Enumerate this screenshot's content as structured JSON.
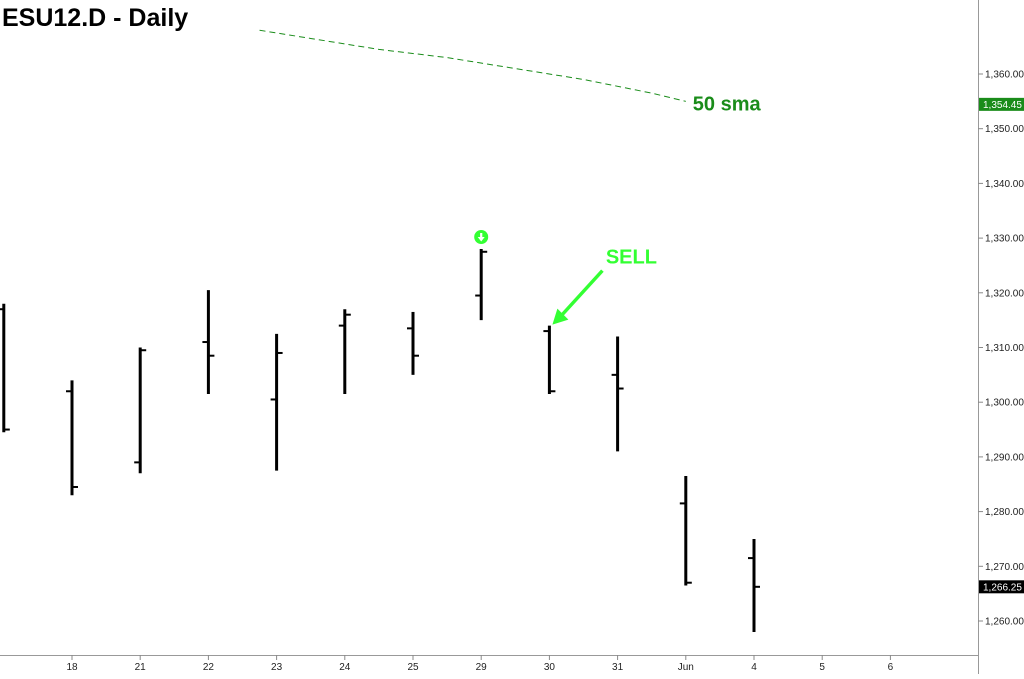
{
  "chart_data": {
    "type": "ohlc",
    "title": "ESU12.D - Daily",
    "x_tick_labels": [
      "18",
      "21",
      "22",
      "23",
      "24",
      "25",
      "29",
      "30",
      "31",
      "Jun",
      "4",
      "5",
      "6"
    ],
    "y_tick_values": [
      1260,
      1270,
      1280,
      1290,
      1300,
      1310,
      1320,
      1330,
      1340,
      1350,
      1360
    ],
    "y_tick_labels": [
      "1,260.00",
      "1,270.00",
      "1,280.00",
      "1,290.00",
      "1,300.00",
      "1,310.00",
      "1,320.00",
      "1,330.00",
      "1,340.00",
      "1,350.00",
      "1,360.00"
    ],
    "ylim": [
      1253,
      1372
    ],
    "bars": [
      {
        "slot": -1,
        "open": 1317,
        "high": 1318,
        "low": 1294.5,
        "close": 1295
      },
      {
        "slot": 0,
        "open": 1302,
        "high": 1304,
        "low": 1283,
        "close": 1284.5
      },
      {
        "slot": 1,
        "open": 1289,
        "high": 1310,
        "low": 1287,
        "close": 1309.5
      },
      {
        "slot": 2,
        "open": 1311,
        "high": 1320.5,
        "low": 1301.5,
        "close": 1308.5
      },
      {
        "slot": 3,
        "open": 1300.5,
        "high": 1312.5,
        "low": 1287.5,
        "close": 1309
      },
      {
        "slot": 4,
        "open": 1314,
        "high": 1317,
        "low": 1301.5,
        "close": 1316
      },
      {
        "slot": 5,
        "open": 1313.5,
        "high": 1316.5,
        "low": 1305,
        "close": 1308.5
      },
      {
        "slot": 6,
        "open": 1319.5,
        "high": 1328,
        "low": 1315,
        "close": 1327.5
      },
      {
        "slot": 7,
        "open": 1313,
        "high": 1314,
        "low": 1301.5,
        "close": 1302
      },
      {
        "slot": 8,
        "open": 1305,
        "high": 1312,
        "low": 1291,
        "close": 1302.5
      },
      {
        "slot": 9,
        "open": 1281.5,
        "high": 1286.5,
        "low": 1266.5,
        "close": 1267
      },
      {
        "slot": 10,
        "open": 1271.5,
        "high": 1275,
        "low": 1258,
        "close": 1266.25
      }
    ],
    "sma": {
      "label": "50 sma",
      "color": "#1a8c1a",
      "points": [
        [
          2.75,
          1368
        ],
        [
          3.5,
          1366.5
        ],
        [
          4.5,
          1364.5
        ],
        [
          5.5,
          1363
        ],
        [
          6.5,
          1361
        ],
        [
          7.5,
          1359
        ],
        [
          8.5,
          1356.5
        ],
        [
          9.0,
          1355
        ]
      ]
    },
    "price_tags": [
      {
        "text": "1,354.45",
        "value": 1354.45,
        "background": "#1a8c1a"
      },
      {
        "text": "1,266.25",
        "value": 1266.25,
        "background": "#000000"
      }
    ],
    "annotations": {
      "sell_label": "SELL",
      "sell_color": "#33ff33",
      "sell_target_slot": 7,
      "sell_target_value": 1314,
      "signal_slot": 6,
      "signal_value": 1330.2,
      "signal_color": "#33ff33",
      "signal_icon": "down-arrow-circle-icon"
    },
    "grid": false,
    "legend": "none"
  }
}
